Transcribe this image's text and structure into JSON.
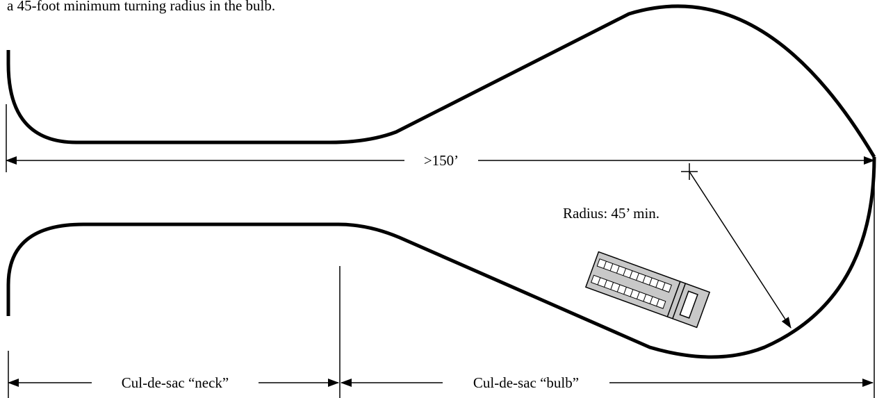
{
  "header_text": "a 45-foot minimum turning radius in the bulb.",
  "dimensions": {
    "overall_length": ">150’",
    "radius": "Radius:  45’ min.",
    "neck": "Cul-de-sac “neck”",
    "bulb": "Cul-de-sac “bulb”"
  },
  "colors": {
    "line": "#000000",
    "truck_body": "#c8c8c8",
    "background": "#ffffff"
  },
  "icons": [
    "center-cross-icon",
    "fire-truck-icon",
    "arrowhead-icon"
  ]
}
